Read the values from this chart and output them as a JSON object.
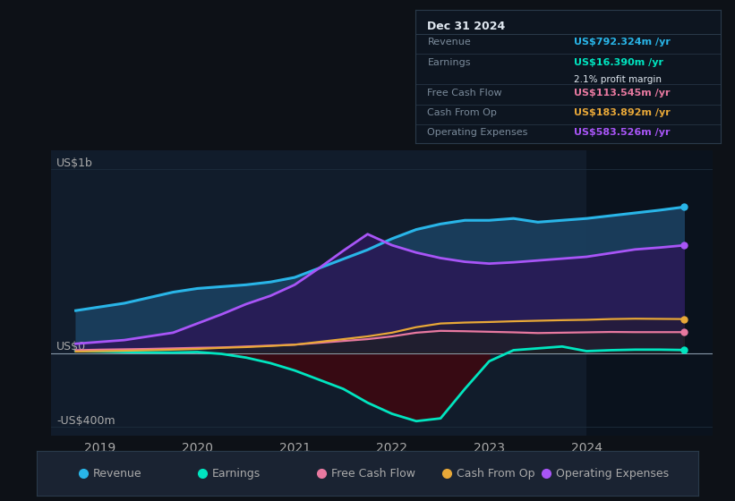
{
  "bg_color": "#0d1117",
  "plot_bg_color": "#111c2b",
  "grid_color": "#1e2d3d",
  "ylabel_top": "US$1b",
  "ylabel_bottom": "-US$400m",
  "ylabel_zero": "US$0",
  "xlim": [
    2018.5,
    2025.3
  ],
  "ylim": [
    -450,
    1100
  ],
  "xticks": [
    2019,
    2020,
    2021,
    2022,
    2023,
    2024
  ],
  "highlight_x_start": 2024.0,
  "highlight_x_end": 2025.3,
  "colors": {
    "revenue": "#29b5e8",
    "earnings": "#00e5c0",
    "free_cash_flow": "#e879a0",
    "cash_from_op": "#e8a838",
    "operating_expenses": "#a855f7"
  },
  "info_box": {
    "title": "Dec 31 2024",
    "revenue_label": "Revenue",
    "revenue_value": "US$792.324m",
    "earnings_label": "Earnings",
    "earnings_value": "US$16.390m",
    "margin_text": "2.1% profit margin",
    "fcf_label": "Free Cash Flow",
    "fcf_value": "US$113.545m",
    "cfop_label": "Cash From Op",
    "cfop_value": "US$183.892m",
    "opex_label": "Operating Expenses",
    "opex_value": "US$583.526m"
  },
  "legend": [
    {
      "label": "Revenue",
      "color": "#29b5e8"
    },
    {
      "label": "Earnings",
      "color": "#00e5c0"
    },
    {
      "label": "Free Cash Flow",
      "color": "#e879a0"
    },
    {
      "label": "Cash From Op",
      "color": "#e8a838"
    },
    {
      "label": "Operating Expenses",
      "color": "#a855f7"
    }
  ],
  "x": [
    2018.75,
    2019.0,
    2019.25,
    2019.5,
    2019.75,
    2020.0,
    2020.25,
    2020.5,
    2020.75,
    2021.0,
    2021.25,
    2021.5,
    2021.75,
    2022.0,
    2022.25,
    2022.5,
    2022.75,
    2023.0,
    2023.25,
    2023.5,
    2023.75,
    2024.0,
    2024.25,
    2024.5,
    2024.75,
    2025.0
  ],
  "revenue": [
    230,
    250,
    270,
    300,
    330,
    350,
    360,
    370,
    385,
    410,
    460,
    510,
    560,
    620,
    670,
    700,
    720,
    720,
    730,
    710,
    720,
    730,
    745,
    760,
    775,
    792
  ],
  "operating_expenses": [
    50,
    60,
    70,
    90,
    110,
    160,
    210,
    265,
    310,
    370,
    460,
    555,
    645,
    585,
    545,
    515,
    495,
    485,
    492,
    502,
    512,
    522,
    542,
    562,
    572,
    584
  ],
  "free_cash_flow": [
    15,
    18,
    20,
    22,
    25,
    28,
    30,
    35,
    40,
    45,
    55,
    65,
    75,
    90,
    110,
    120,
    118,
    115,
    112,
    108,
    110,
    112,
    114,
    113,
    113,
    113
  ],
  "cash_from_op": [
    8,
    10,
    12,
    15,
    18,
    22,
    28,
    32,
    38,
    45,
    60,
    75,
    90,
    110,
    140,
    160,
    165,
    168,
    172,
    175,
    178,
    180,
    184,
    186,
    185,
    184
  ],
  "earnings": [
    10,
    8,
    5,
    3,
    2,
    5,
    -5,
    -25,
    -55,
    -95,
    -145,
    -195,
    -270,
    -330,
    -370,
    -355,
    -195,
    -45,
    15,
    25,
    35,
    10,
    15,
    18,
    18,
    16
  ]
}
